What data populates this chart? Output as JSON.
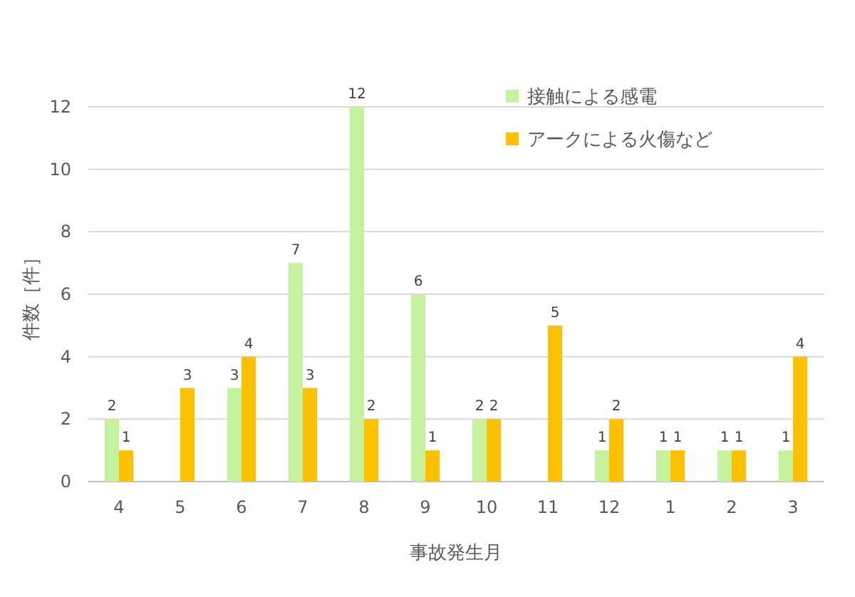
{
  "chart_data": {
    "type": "bar",
    "xlabel": "事故発生月",
    "ylabel": "件数［件］",
    "categories": [
      "4",
      "5",
      "6",
      "7",
      "8",
      "9",
      "10",
      "11",
      "12",
      "1",
      "2",
      "3"
    ],
    "series": [
      {
        "name": "接触による感電",
        "color": "#c6f29e",
        "values": [
          2,
          0,
          3,
          7,
          12,
          6,
          2,
          0,
          1,
          1,
          1,
          1
        ],
        "value_labels": [
          "2",
          null,
          "3",
          "7",
          "12",
          "6",
          "2",
          null,
          "1",
          "1",
          "1",
          "1"
        ]
      },
      {
        "name": "アークによる火傷など",
        "color": "#ffc000",
        "values": [
          1,
          3,
          4,
          3,
          2,
          1,
          2,
          5,
          2,
          1,
          1,
          4
        ],
        "value_labels": [
          "1",
          "3",
          "4",
          "3",
          "2",
          "1",
          "2",
          "5",
          "2",
          "1",
          "1",
          "4"
        ]
      }
    ],
    "ylim": [
      0,
      12
    ],
    "yticks": [
      0,
      2,
      4,
      6,
      8,
      10,
      12
    ],
    "grid": "y",
    "legend": "top right"
  }
}
